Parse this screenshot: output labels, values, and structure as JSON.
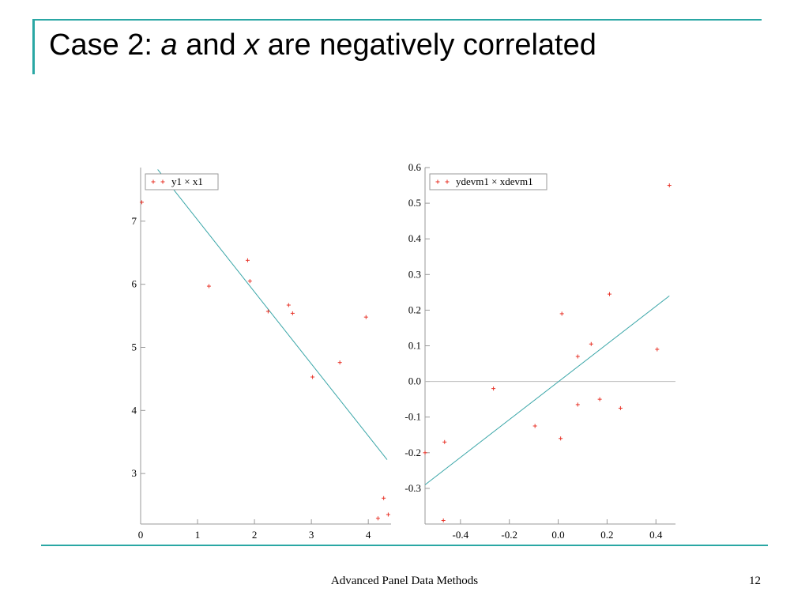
{
  "slide": {
    "title_prefix": "Case 2: ",
    "title_a": "a",
    "title_and": " and ",
    "title_x": "x",
    "title_suffix": " are negatively correlated",
    "footer": "Advanced Panel Data Methods",
    "page_number": "12"
  },
  "colors": {
    "accent": "#2aa7a4",
    "points": "#e8352a",
    "fit_line": "#3aa6a8",
    "zero_line": "#bbbbbb"
  },
  "chart_data": [
    {
      "type": "scatter",
      "legend": "y1 × x1",
      "legend_position": "top-left",
      "xlim": [
        0,
        4.4
      ],
      "ylim": [
        2.2,
        7.85
      ],
      "xticks": [
        0,
        1,
        2,
        3,
        4
      ],
      "xtick_labels": [
        "0",
        "1",
        "2",
        "3",
        "4"
      ],
      "yticks": [
        3,
        4,
        5,
        6,
        7
      ],
      "ytick_labels": [
        "3",
        "4",
        "5",
        "6",
        "7"
      ],
      "points": [
        {
          "x": 0.02,
          "y": 7.3
        },
        {
          "x": 1.2,
          "y": 5.97
        },
        {
          "x": 1.88,
          "y": 6.38
        },
        {
          "x": 1.92,
          "y": 6.05
        },
        {
          "x": 2.24,
          "y": 5.57
        },
        {
          "x": 2.6,
          "y": 5.67
        },
        {
          "x": 2.67,
          "y": 5.54
        },
        {
          "x": 3.02,
          "y": 4.53
        },
        {
          "x": 3.5,
          "y": 4.76
        },
        {
          "x": 3.96,
          "y": 5.48
        },
        {
          "x": 4.17,
          "y": 2.29
        },
        {
          "x": 4.27,
          "y": 2.61
        },
        {
          "x": 4.35,
          "y": 2.35
        }
      ],
      "fit_line": {
        "x": [
          0.3,
          4.33
        ],
        "y": [
          7.82,
          3.22
        ]
      }
    },
    {
      "type": "scatter",
      "legend": "ydevm1 × xdevm1",
      "legend_position": "top-left",
      "xlim": [
        -0.545,
        0.48
      ],
      "ylim": [
        -0.4,
        0.6
      ],
      "xticks": [
        -0.4,
        -0.2,
        0.0,
        0.2,
        0.4
      ],
      "xtick_labels": [
        "-0.4",
        "-0.2",
        "0.0",
        "0.2",
        "0.4"
      ],
      "yticks": [
        -0.3,
        -0.2,
        -0.1,
        0.0,
        0.1,
        0.2,
        0.3,
        0.4,
        0.5,
        0.6
      ],
      "ytick_labels": [
        "-0.3",
        "-0.2",
        "-0.1",
        "0.0",
        "0.1",
        "0.2",
        "0.3",
        "0.4",
        "0.5",
        "0.6"
      ],
      "zero_line": 0.0,
      "points": [
        {
          "x": -0.545,
          "y": -0.2
        },
        {
          "x": -0.465,
          "y": -0.17
        },
        {
          "x": -0.47,
          "y": -0.39
        },
        {
          "x": -0.265,
          "y": -0.02
        },
        {
          "x": -0.095,
          "y": -0.125
        },
        {
          "x": 0.01,
          "y": -0.16
        },
        {
          "x": 0.015,
          "y": 0.19
        },
        {
          "x": 0.08,
          "y": 0.07
        },
        {
          "x": 0.08,
          "y": -0.065
        },
        {
          "x": 0.135,
          "y": 0.105
        },
        {
          "x": 0.17,
          "y": -0.05
        },
        {
          "x": 0.21,
          "y": 0.245
        },
        {
          "x": 0.255,
          "y": -0.075
        },
        {
          "x": 0.405,
          "y": 0.09
        },
        {
          "x": 0.455,
          "y": 0.55
        }
      ],
      "fit_line": {
        "x": [
          -0.545,
          0.455
        ],
        "y": [
          -0.29,
          0.24
        ]
      }
    }
  ]
}
